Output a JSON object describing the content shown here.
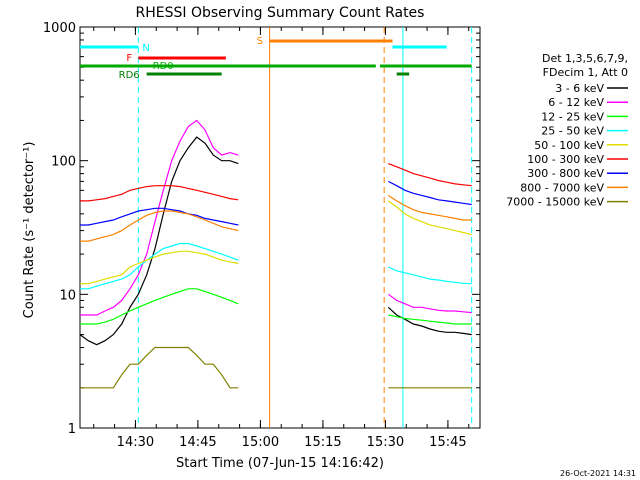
{
  "chart_data": {
    "type": "line",
    "title": "RHESSI Observing Summary Count Rates",
    "xlabel": "Start Time (07-Jun-15 14:16:42)",
    "ylabel": "Count Rate (s⁻¹ detector⁻¹)",
    "y_scale": "log",
    "ylim": [
      1,
      1000
    ],
    "y_ticks": [
      "1",
      "10",
      "100",
      "1000"
    ],
    "xlim_minutes": [
      0,
      96
    ],
    "x_ticks": [
      "14:30",
      "14:45",
      "15:00",
      "15:15",
      "15:30",
      "15:45"
    ],
    "x_tick_minutes": [
      13.3,
      28.3,
      43.3,
      58.3,
      73.3,
      88.3
    ],
    "legend_header": [
      "Det 1,3,5,6,7,9,",
      "FDecim 1, Att 0"
    ],
    "legend_position": "right",
    "data_gap_minutes": [
      45.5,
      77.5
    ],
    "series": [
      {
        "name": "3 - 6 keV",
        "color": "#000000",
        "values": [
          5,
          4.5,
          4.2,
          4.5,
          5,
          6,
          8,
          10,
          14,
          22,
          40,
          70,
          100,
          125,
          150,
          135,
          110,
          100,
          100,
          95,
          0,
          0,
          0,
          0,
          0,
          0,
          0,
          0,
          0,
          0,
          0,
          0,
          0,
          0,
          0,
          0,
          0,
          8,
          7,
          6.5,
          6,
          5.8,
          5.5,
          5.3,
          5.2,
          5.2,
          5.1,
          5
        ]
      },
      {
        "name": "6 - 12 keV",
        "color": "#ff00ff",
        "values": [
          7,
          7,
          7,
          7.5,
          8,
          9,
          11,
          14,
          20,
          35,
          60,
          100,
          140,
          180,
          200,
          170,
          125,
          110,
          115,
          110,
          0,
          0,
          0,
          0,
          0,
          0,
          0,
          0,
          0,
          0,
          0,
          0,
          0,
          0,
          0,
          0,
          0,
          10,
          9,
          8.5,
          8,
          8,
          7.8,
          7.6,
          7.5,
          7.5,
          7.4,
          7.3
        ]
      },
      {
        "name": "12 - 25 keV",
        "color": "#00ff00",
        "values": [
          6,
          6,
          6,
          6.2,
          6.5,
          7,
          7.5,
          8,
          8.5,
          9,
          9.5,
          10,
          10.5,
          11,
          11,
          10.5,
          10,
          9.5,
          9,
          8.5,
          0,
          0,
          0,
          0,
          0,
          0,
          0,
          0,
          0,
          0,
          0,
          0,
          0,
          0,
          0,
          0,
          0,
          7,
          6.8,
          6.6,
          6.5,
          6.4,
          6.3,
          6.2,
          6.1,
          6,
          6,
          6
        ]
      },
      {
        "name": "25 - 50 keV",
        "color": "#00ffff",
        "values": [
          11,
          11,
          11.5,
          12,
          12.5,
          13,
          14,
          16,
          18,
          20,
          22,
          23,
          24,
          24,
          23,
          22,
          21,
          20,
          19,
          18,
          0,
          0,
          0,
          0,
          0,
          0,
          0,
          0,
          0,
          0,
          0,
          0,
          0,
          0,
          0,
          0,
          0,
          16,
          15,
          14.5,
          14,
          13.5,
          13,
          12.8,
          12.5,
          12.3,
          12.1,
          12
        ]
      },
      {
        "name": "50 - 100 keV",
        "color": "#dddd00",
        "values": [
          12,
          12,
          12.5,
          13,
          13.5,
          14,
          16,
          17,
          18,
          19,
          20,
          20.5,
          21,
          21,
          20.5,
          20,
          19,
          18,
          17.5,
          17,
          0,
          0,
          0,
          0,
          0,
          0,
          0,
          0,
          0,
          0,
          0,
          0,
          0,
          0,
          0,
          0,
          0,
          50,
          45,
          40,
          37,
          35,
          33,
          32,
          31,
          30,
          29,
          28
        ]
      },
      {
        "name": "100 - 300 keV",
        "color": "#ff0000",
        "values": [
          50,
          50,
          51,
          52,
          54,
          56,
          60,
          62,
          64,
          65,
          65,
          65,
          64,
          62,
          60,
          58,
          56,
          54,
          52,
          51,
          0,
          0,
          0,
          0,
          0,
          0,
          0,
          0,
          0,
          0,
          0,
          0,
          0,
          0,
          0,
          0,
          0,
          95,
          90,
          85,
          80,
          77,
          74,
          71,
          69,
          67,
          66,
          65
        ]
      },
      {
        "name": "300 - 800 keV",
        "color": "#0000ff",
        "values": [
          33,
          33,
          34,
          35,
          36,
          38,
          40,
          42,
          43,
          44,
          44,
          43,
          42,
          40,
          39,
          37,
          36,
          35,
          34,
          33,
          0,
          0,
          0,
          0,
          0,
          0,
          0,
          0,
          0,
          0,
          0,
          0,
          0,
          0,
          0,
          0,
          0,
          70,
          65,
          60,
          57,
          55,
          53,
          51,
          50,
          49,
          48,
          47
        ]
      },
      {
        "name": "800 - 7000 keV",
        "color": "#ff8000",
        "values": [
          25,
          25,
          26,
          27,
          28,
          30,
          33,
          36,
          39,
          41,
          42,
          42,
          41,
          40,
          38,
          36,
          34,
          32,
          31,
          30,
          0,
          0,
          0,
          0,
          0,
          0,
          0,
          0,
          0,
          0,
          0,
          0,
          0,
          0,
          0,
          0,
          0,
          55,
          50,
          46,
          43,
          41,
          40,
          39,
          38,
          37,
          36,
          36
        ]
      },
      {
        "name": "7000 - 15000 keV",
        "color": "#808000",
        "values": [
          2,
          2,
          2,
          2,
          2,
          2.5,
          3,
          3,
          3.5,
          4,
          4,
          4,
          4,
          4,
          3.5,
          3,
          3,
          2.5,
          2,
          2,
          0,
          0,
          0,
          0,
          0,
          0,
          0,
          0,
          0,
          0,
          0,
          0,
          0,
          0,
          0,
          0,
          0,
          2,
          2,
          2,
          2,
          2,
          2,
          2,
          2,
          2,
          2,
          2
        ]
      }
    ],
    "x_minutes": [
      0,
      2,
      4,
      6,
      8,
      10,
      12,
      14,
      16,
      18,
      20,
      22,
      24,
      26,
      28,
      30,
      32,
      34,
      36,
      38,
      40,
      42,
      44,
      46,
      48,
      50,
      52,
      54,
      56,
      58,
      60,
      62,
      64,
      66,
      68,
      70,
      72,
      74,
      76,
      78,
      80,
      82,
      84,
      86,
      88,
      90,
      92,
      94
    ],
    "flag_bars": [
      {
        "label": "N",
        "color": "#00ffff",
        "intervals": [
          [
            0,
            14
          ],
          [
            75,
            88
          ]
        ]
      },
      {
        "label": "F",
        "color": "#ff0000",
        "intervals": [
          [
            14,
            35
          ]
        ]
      },
      {
        "label": "S",
        "color": "#ff8000",
        "intervals": [
          [
            45.5,
            75
          ]
        ]
      },
      {
        "label": "RD0",
        "color": "#00aa00",
        "intervals": [
          [
            0,
            71
          ],
          [
            72,
            94
          ]
        ]
      },
      {
        "label": "RD6",
        "color": "#008000",
        "intervals": [
          [
            16,
            34
          ],
          [
            76,
            79
          ]
        ]
      }
    ],
    "vertical_markers": [
      {
        "minute": 14,
        "color": "#00ffff",
        "style": "dashed"
      },
      {
        "minute": 45.5,
        "color": "#ff8000",
        "style": "solid"
      },
      {
        "minute": 73,
        "color": "#ff8000",
        "style": "dashed"
      },
      {
        "minute": 77.5,
        "color": "#00ffff",
        "style": "solid"
      },
      {
        "minute": 94,
        "color": "#00ffff",
        "style": "dashed"
      }
    ]
  },
  "timestamp": "26-Oct-2021 14:31"
}
